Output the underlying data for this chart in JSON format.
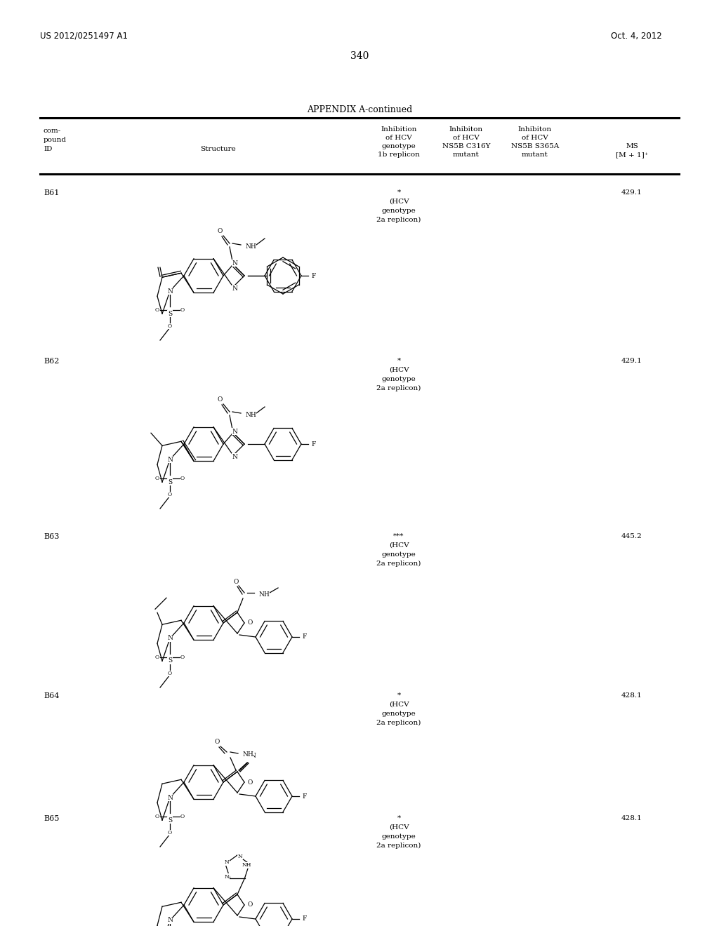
{
  "page_number": "340",
  "patent_number": "US 2012/0251497 A1",
  "patent_date": "Oct. 4, 2012",
  "appendix_title": "APPENDIX A-continued",
  "rows": [
    {
      "id": "B61",
      "inh_hcv": "*",
      "inh_note": "(HCV\ngenotype\n2a replicon)",
      "inh_c316y": "",
      "inh_s365a": "",
      "ms": "429.1"
    },
    {
      "id": "B62",
      "inh_hcv": "*",
      "inh_note": "(HCV\ngenotype\n2a replicon)",
      "inh_c316y": "",
      "inh_s365a": "",
      "ms": "429.1"
    },
    {
      "id": "B63",
      "inh_hcv": "***",
      "inh_note": "(HCV\ngenotype\n2a replicon)",
      "inh_c316y": "",
      "inh_s365a": "",
      "ms": "445.2"
    },
    {
      "id": "B64",
      "inh_hcv": "*",
      "inh_note": "(HCV\ngenotype\n2a replicon)",
      "inh_c316y": "",
      "inh_s365a": "",
      "ms": "428.1"
    },
    {
      "id": "B65",
      "inh_hcv": "*",
      "inh_note": "(HCV\ngenotype\n2a replicon)",
      "inh_c316y": "",
      "inh_s365a": "",
      "ms": "428.1"
    }
  ]
}
